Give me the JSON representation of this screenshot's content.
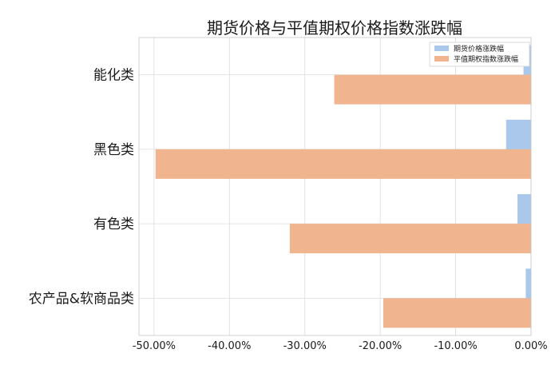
{
  "chart_data": {
    "type": "bar",
    "orientation": "horizontal",
    "title": "期货价格与平值期权价格指数涨跌幅",
    "xlabel": "",
    "ylabel": "",
    "categories": [
      "能化类",
      "黑色类",
      "有色类",
      "农产品&软商品类"
    ],
    "series": [
      {
        "name": "期货价格涨跌幅",
        "color": "#a9c8eb",
        "values": [
          -1.0,
          -3.3,
          -1.8,
          -0.7
        ]
      },
      {
        "name": "平值期权指数涨跌幅",
        "color": "#f0b48f",
        "values": [
          -26.1,
          -49.8,
          -32.0,
          -19.6
        ]
      }
    ],
    "xlim": [
      -52,
      0
    ],
    "xticks": [
      -50,
      -40,
      -30,
      -20,
      -10,
      0
    ],
    "xtick_labels": [
      "-50.00%",
      "-40.00%",
      "-30.00%",
      "-20.00%",
      "-10.00%",
      "0.00%"
    ],
    "grid": true,
    "legend_position": "top-right"
  }
}
